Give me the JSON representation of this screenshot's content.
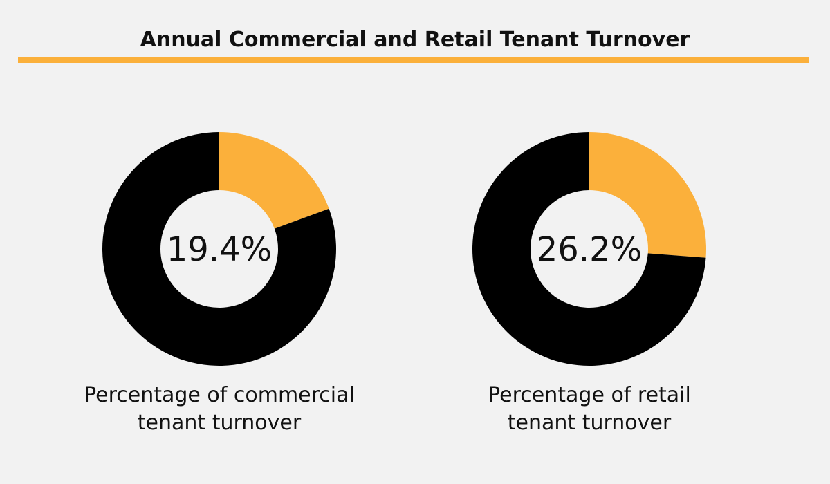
{
  "title": "Annual Commercial and Retail Tenant Turnover",
  "colors": {
    "accent": "#fbb03b",
    "dark": "#000000",
    "background": "#f2f2f2",
    "text": "#111111"
  },
  "chart_data": [
    {
      "type": "pie",
      "center_label": "19.4%",
      "caption_lines": [
        "Percentage of commercial",
        "tenant turnover"
      ],
      "slices": [
        {
          "value": 19.4,
          "color": "#fbb03b"
        },
        {
          "value": 80.6,
          "color": "#000000"
        }
      ]
    },
    {
      "type": "pie",
      "center_label": "26.2%",
      "caption_lines": [
        "Percentage of retail",
        "tenant turnover"
      ],
      "slices": [
        {
          "value": 26.2,
          "color": "#fbb03b"
        },
        {
          "value": 73.8,
          "color": "#000000"
        }
      ]
    }
  ]
}
